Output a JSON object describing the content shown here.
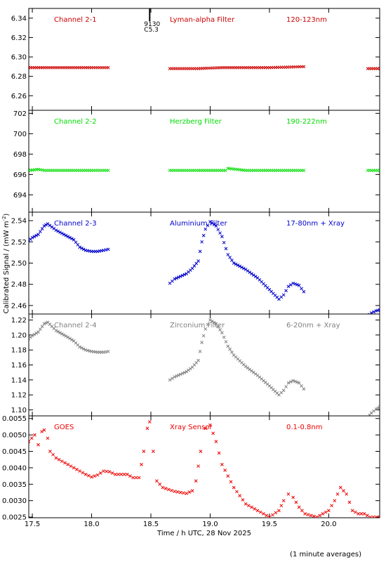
{
  "figure": {
    "ylabel": "Calibrated Signal / (mW m",
    "ylabel_sup": "-2",
    "ylabel_tail": ")",
    "xlabel": "Time / h UTC, 28 Nov 2025",
    "footnote": "(1 minute averages)",
    "x_ticks": [
      "17.5",
      "18.0",
      "18.5",
      "19.0",
      "19.5",
      "20.0"
    ],
    "event_marker": {
      "time": 18.49,
      "label_top": "9130",
      "label_bottom": "C5.3"
    }
  },
  "colors": {
    "red": "#cc0000",
    "green": "#00dd00",
    "blue": "#0000cc",
    "gray": "#808080",
    "goes": "#ee0000",
    "axes": "#000000"
  },
  "chart_data": [
    {
      "type": "scatter",
      "labels": [
        "Channel 2-1",
        "Lyman-alpha Filter",
        "120-123nm"
      ],
      "color_key": "red",
      "xlim": [
        17.47,
        20.43
      ],
      "ylim": [
        6.245,
        6.35
      ],
      "y_ticks": [
        "6.26",
        "6.28",
        "6.30",
        "6.32",
        "6.34"
      ],
      "segments": [
        {
          "t": [
            17.47,
            17.6,
            17.8,
            18.0,
            18.14
          ],
          "y": [
            6.289,
            6.289,
            6.289,
            6.289,
            6.289
          ]
        },
        {
          "t": [
            18.66,
            18.9,
            19.1,
            19.3,
            19.5,
            19.79
          ],
          "y": [
            6.288,
            6.288,
            6.289,
            6.289,
            6.289,
            6.29
          ]
        },
        {
          "t": [
            20.33,
            20.43
          ],
          "y": [
            6.288,
            6.288
          ]
        }
      ]
    },
    {
      "type": "scatter",
      "labels": [
        "Channel 2-2",
        "Herzberg Filter",
        "190-222nm"
      ],
      "color_key": "green",
      "xlim": [
        17.47,
        20.43
      ],
      "ylim": [
        692.3,
        702.3
      ],
      "y_ticks": [
        "694",
        "696",
        "698",
        "700",
        "702"
      ],
      "segments": [
        {
          "t": [
            17.47,
            17.55,
            17.6,
            17.8,
            18.0,
            18.14
          ],
          "y": [
            696.4,
            696.5,
            696.4,
            696.4,
            696.4,
            696.4
          ]
        },
        {
          "t": [
            18.66,
            18.9,
            19.13,
            19.15,
            19.3,
            19.5,
            19.79
          ],
          "y": [
            696.4,
            696.4,
            696.4,
            696.6,
            696.4,
            696.4,
            696.4
          ]
        },
        {
          "t": [
            20.33,
            20.43
          ],
          "y": [
            696.4,
            696.4
          ]
        }
      ]
    },
    {
      "type": "scatter",
      "labels": [
        "Channel 2-3",
        "Aluminium Filter",
        "17-80nm + Xray"
      ],
      "color_key": "blue",
      "xlim": [
        17.47,
        20.43
      ],
      "ylim": [
        2.452,
        2.548
      ],
      "y_ticks": [
        "2.46",
        "2.48",
        "2.50",
        "2.52",
        "2.54"
      ],
      "segments": [
        {
          "t": [
            17.47,
            17.5,
            17.55,
            17.6,
            17.63,
            17.7,
            17.8,
            17.85,
            17.9,
            17.95,
            18.0,
            18.05,
            18.1,
            18.14
          ],
          "y": [
            2.521,
            2.524,
            2.527,
            2.535,
            2.537,
            2.531,
            2.525,
            2.522,
            2.515,
            2.512,
            2.511,
            2.511,
            2.512,
            2.513
          ]
        },
        {
          "t": [
            18.66,
            18.7,
            18.8,
            18.85,
            18.9,
            18.93,
            18.96,
            19.0,
            19.05,
            19.1,
            19.15,
            19.2,
            19.3,
            19.4,
            19.5,
            19.58,
            19.62,
            19.66,
            19.7,
            19.75,
            19.79
          ],
          "y": [
            2.481,
            2.485,
            2.49,
            2.495,
            2.502,
            2.52,
            2.532,
            2.539,
            2.535,
            2.525,
            2.508,
            2.5,
            2.494,
            2.486,
            2.475,
            2.466,
            2.47,
            2.478,
            2.481,
            2.479,
            2.473
          ]
        },
        {
          "t": [
            20.33,
            20.36,
            20.4,
            20.43
          ],
          "y": [
            2.45,
            2.453,
            2.455,
            2.456
          ]
        }
      ]
    },
    {
      "type": "scatter",
      "labels": [
        "Channel 2-4",
        "Zirconium Filter",
        "6-20nm + Xray"
      ],
      "color_key": "gray",
      "xlim": [
        17.47,
        20.43
      ],
      "ylim": [
        1.092,
        1.228
      ],
      "y_ticks": [
        "1.10",
        "1.12",
        "1.14",
        "1.16",
        "1.18",
        "1.20",
        "1.22"
      ],
      "segments": [
        {
          "t": [
            17.47,
            17.5,
            17.55,
            17.6,
            17.63,
            17.7,
            17.8,
            17.85,
            17.9,
            17.95,
            18.0,
            18.05,
            18.1,
            18.14
          ],
          "y": [
            1.195,
            1.199,
            1.204,
            1.215,
            1.217,
            1.206,
            1.197,
            1.192,
            1.184,
            1.18,
            1.178,
            1.177,
            1.177,
            1.178
          ]
        },
        {
          "t": [
            18.66,
            18.7,
            18.8,
            18.85,
            18.9,
            18.93,
            18.96,
            19.0,
            19.05,
            19.1,
            19.15,
            19.2,
            19.3,
            19.4,
            19.5,
            19.58,
            19.62,
            19.66,
            19.7,
            19.75,
            19.79
          ],
          "y": [
            1.14,
            1.144,
            1.151,
            1.157,
            1.166,
            1.19,
            1.208,
            1.22,
            1.215,
            1.203,
            1.185,
            1.173,
            1.158,
            1.146,
            1.132,
            1.12,
            1.126,
            1.136,
            1.139,
            1.136,
            1.128
          ]
        },
        {
          "t": [
            20.33,
            20.36,
            20.4,
            20.43
          ],
          "y": [
            1.09,
            1.096,
            1.101,
            1.104
          ]
        }
      ]
    },
    {
      "type": "scatter",
      "labels": [
        "GOES",
        "Xray Sensor",
        "0.1-0.8nm"
      ],
      "color_key": "goes",
      "xlim": [
        17.47,
        20.43
      ],
      "ylim": [
        0.00248,
        0.00558
      ],
      "y_ticks": [
        "0.0025",
        "0.0030",
        "0.0035",
        "0.0040",
        "0.0045",
        "0.0050",
        "0.0055"
      ],
      "segments": [
        {
          "t": [
            17.47,
            17.52,
            17.55,
            17.58,
            17.6,
            17.63,
            17.65,
            17.7,
            17.8,
            17.9,
            17.95,
            18.0,
            18.05,
            18.1,
            18.15,
            18.2,
            18.3,
            18.35,
            18.4,
            18.44,
            18.47,
            18.49,
            18.52,
            18.55,
            18.6,
            18.7,
            18.8,
            18.85,
            18.88,
            18.92,
            18.96,
            19.0,
            19.05,
            19.1,
            19.2,
            19.3,
            19.4,
            19.5,
            19.58,
            19.62,
            19.66,
            19.7,
            19.75,
            19.8,
            19.9,
            20.0,
            20.05,
            20.1,
            20.15,
            20.2,
            20.25,
            20.3,
            20.35,
            20.43
          ],
          "y": [
            0.0048,
            0.005,
            0.0047,
            0.0051,
            0.00515,
            0.0049,
            0.0045,
            0.0043,
            0.0041,
            0.0039,
            0.0038,
            0.00372,
            0.00378,
            0.0039,
            0.00388,
            0.0038,
            0.0038,
            0.0037,
            0.0037,
            0.0045,
            0.0052,
            0.0054,
            0.0045,
            0.0036,
            0.0034,
            0.00328,
            0.00322,
            0.0033,
            0.0036,
            0.0045,
            0.0052,
            0.0053,
            0.0048,
            0.0041,
            0.0034,
            0.0029,
            0.0027,
            0.0025,
            0.0027,
            0.003,
            0.0032,
            0.0031,
            0.0028,
            0.0026,
            0.0025,
            0.0027,
            0.003,
            0.0034,
            0.0032,
            0.0027,
            0.0026,
            0.0026,
            0.0025,
            0.0025
          ]
        }
      ]
    }
  ]
}
